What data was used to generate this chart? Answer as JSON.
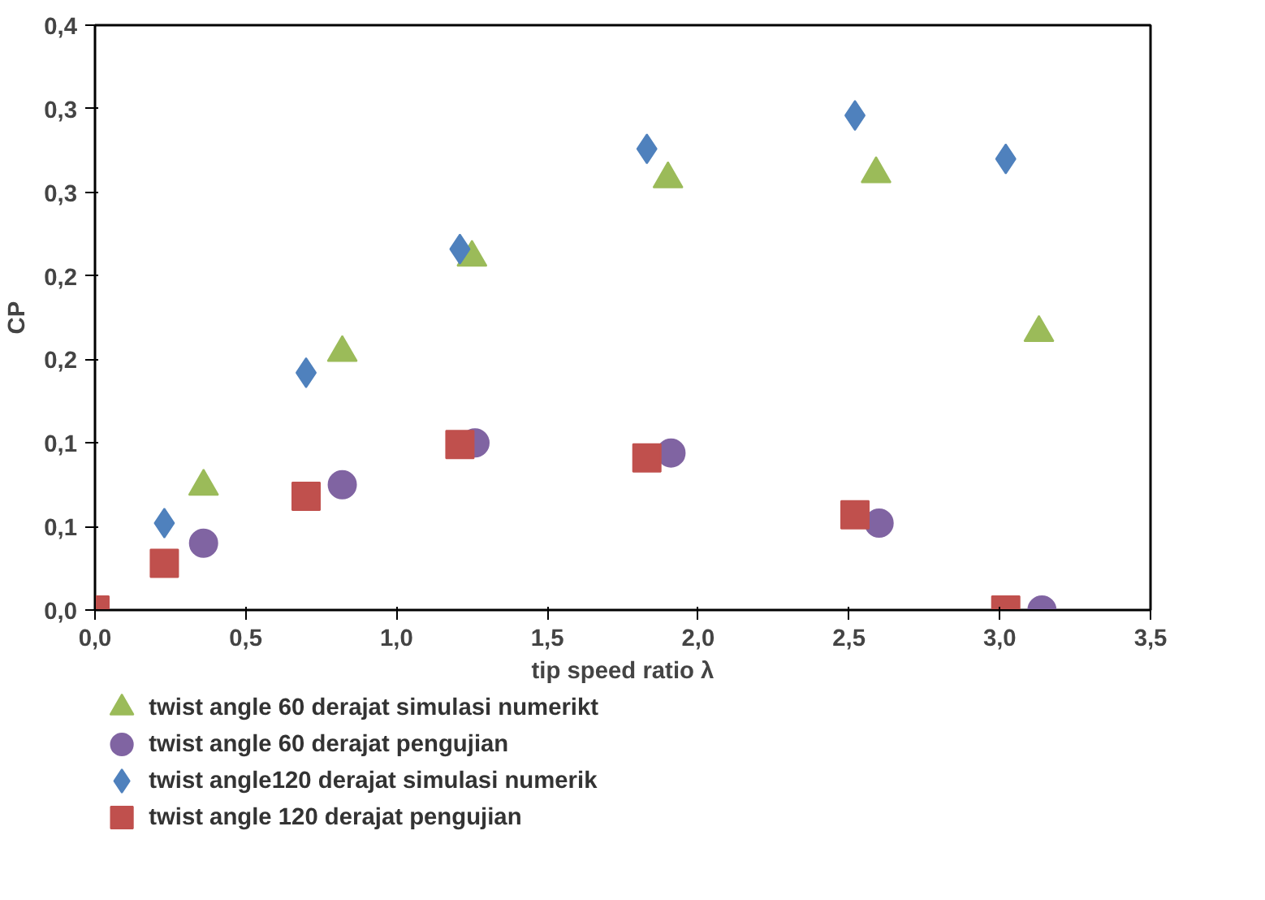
{
  "chart_data": {
    "type": "scatter",
    "xlabel": "tip speed ratio λ",
    "ylabel": "CP",
    "xlim": [
      0,
      3.5
    ],
    "ylim": [
      0,
      0.35
    ],
    "xticks": [
      {
        "value": 0,
        "label": "0,0"
      },
      {
        "value": 0.5,
        "label": "0,5"
      },
      {
        "value": 1,
        "label": "1,0"
      },
      {
        "value": 1.5,
        "label": "1,5"
      },
      {
        "value": 2,
        "label": "2,0"
      },
      {
        "value": 2.5,
        "label": "2,5"
      },
      {
        "value": 3,
        "label": "3,0"
      },
      {
        "value": 3.5,
        "label": "3,5"
      }
    ],
    "yticks": [
      {
        "value": 0,
        "label": "0,0"
      },
      {
        "value": 0.05,
        "label": "0,1"
      },
      {
        "value": 0.1,
        "label": "0,1"
      },
      {
        "value": 0.15,
        "label": "0,2"
      },
      {
        "value": 0.2,
        "label": "0,2"
      },
      {
        "value": 0.25,
        "label": "0,3"
      },
      {
        "value": 0.3,
        "label": "0,3"
      },
      {
        "value": 0.35,
        "label": "0,4"
      }
    ],
    "grid": false,
    "legend": "bottom",
    "series": [
      {
        "name": "twist angle 60 derajat simulasi numerikt",
        "color": "#9bbb59",
        "marker": "triangle",
        "x": [
          0.36,
          0.82,
          1.25,
          1.9,
          2.59,
          3.13
        ],
        "values": [
          0.074,
          0.154,
          0.211,
          0.258,
          0.261,
          0.166
        ]
      },
      {
        "name": "twist angle 60 derajat pengujian",
        "color": "#8064a2",
        "marker": "circle",
        "x": [
          0.36,
          0.82,
          1.26,
          1.91,
          2.6,
          3.14
        ],
        "values": [
          0.04,
          0.075,
          0.1,
          0.094,
          0.052,
          0
        ]
      },
      {
        "name": "twist angle120 derajat simulasi numerik",
        "color": "#4f81bd",
        "marker": "diamond",
        "x": [
          0.23,
          0.7,
          1.21,
          1.83,
          2.52,
          3.02
        ],
        "values": [
          0.052,
          0.142,
          0.216,
          0.276,
          0.296,
          0.27
        ]
      },
      {
        "name": "twist angle 120 derajat pengujian",
        "color": "#c0504d",
        "marker": "square",
        "x": [
          0,
          0.23,
          0.7,
          1.21,
          1.83,
          2.52,
          3.02
        ],
        "values": [
          0,
          0.028,
          0.068,
          0.099,
          0.091,
          0.057,
          0
        ]
      }
    ]
  }
}
